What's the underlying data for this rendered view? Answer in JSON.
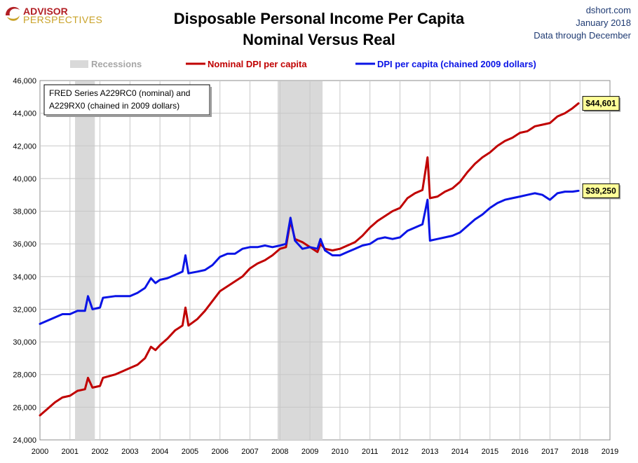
{
  "header": {
    "logo_line1": "ADVISOR",
    "logo_line2": "PERSPECTIVES",
    "title_line1": "Disposable Personal Income Per Capita",
    "title_line2": "Nominal Versus Real",
    "source": "dshort.com",
    "date": "January 2018",
    "coverage": "Data through December"
  },
  "note": {
    "line1": "FRED Series A229RC0 (nominal) and",
    "line2": "A229RX0 (chained in 2009 dollars)"
  },
  "colors": {
    "nominal": "#c00000",
    "real": "#0a14e6",
    "recession": "#d9d9d9",
    "grid": "#c8c8c8"
  },
  "chart_data": {
    "type": "line",
    "xlim": [
      2000,
      2019
    ],
    "ylim": [
      24000,
      46000
    ],
    "x_ticks": [
      "2000",
      "2001",
      "2002",
      "2003",
      "2004",
      "2005",
      "2006",
      "2007",
      "2008",
      "2009",
      "2010",
      "2011",
      "2012",
      "2013",
      "2014",
      "2015",
      "2016",
      "2017",
      "2018",
      "2019"
    ],
    "y_ticks": [
      "24,000",
      "26,000",
      "28,000",
      "30,000",
      "32,000",
      "34,000",
      "36,000",
      "38,000",
      "40,000",
      "42,000",
      "44,000",
      "46,000"
    ],
    "legend": {
      "recessions": "Recessions",
      "placement": "top"
    },
    "recessions": [
      [
        2001.17,
        2001.83
      ],
      [
        2007.92,
        2009.42
      ]
    ],
    "series": [
      {
        "name": "Nominal DPI per capita",
        "key": "nominal",
        "points": [
          [
            2000.0,
            25500
          ],
          [
            2000.25,
            25900
          ],
          [
            2000.5,
            26300
          ],
          [
            2000.75,
            26600
          ],
          [
            2001.0,
            26700
          ],
          [
            2001.25,
            27000
          ],
          [
            2001.5,
            27100
          ],
          [
            2001.6,
            27800
          ],
          [
            2001.75,
            27200
          ],
          [
            2002.0,
            27300
          ],
          [
            2002.1,
            27800
          ],
          [
            2002.5,
            28000
          ],
          [
            2002.75,
            28200
          ],
          [
            2003.0,
            28400
          ],
          [
            2003.25,
            28600
          ],
          [
            2003.5,
            29000
          ],
          [
            2003.7,
            29700
          ],
          [
            2003.85,
            29500
          ],
          [
            2004.0,
            29800
          ],
          [
            2004.25,
            30200
          ],
          [
            2004.5,
            30700
          ],
          [
            2004.75,
            31000
          ],
          [
            2004.85,
            32100
          ],
          [
            2004.95,
            31000
          ],
          [
            2005.25,
            31400
          ],
          [
            2005.5,
            31900
          ],
          [
            2005.75,
            32500
          ],
          [
            2006.0,
            33100
          ],
          [
            2006.25,
            33400
          ],
          [
            2006.5,
            33700
          ],
          [
            2006.75,
            34000
          ],
          [
            2007.0,
            34500
          ],
          [
            2007.25,
            34800
          ],
          [
            2007.5,
            35000
          ],
          [
            2007.75,
            35300
          ],
          [
            2008.0,
            35700
          ],
          [
            2008.2,
            35800
          ],
          [
            2008.35,
            37400
          ],
          [
            2008.5,
            36300
          ],
          [
            2008.75,
            36100
          ],
          [
            2009.0,
            35800
          ],
          [
            2009.25,
            35500
          ],
          [
            2009.35,
            36000
          ],
          [
            2009.5,
            35700
          ],
          [
            2009.75,
            35600
          ],
          [
            2010.0,
            35700
          ],
          [
            2010.25,
            35900
          ],
          [
            2010.5,
            36100
          ],
          [
            2010.75,
            36500
          ],
          [
            2011.0,
            37000
          ],
          [
            2011.25,
            37400
          ],
          [
            2011.5,
            37700
          ],
          [
            2011.75,
            38000
          ],
          [
            2012.0,
            38200
          ],
          [
            2012.25,
            38800
          ],
          [
            2012.5,
            39100
          ],
          [
            2012.75,
            39300
          ],
          [
            2012.92,
            41300
          ],
          [
            2013.0,
            38800
          ],
          [
            2013.25,
            38900
          ],
          [
            2013.5,
            39200
          ],
          [
            2013.75,
            39400
          ],
          [
            2014.0,
            39800
          ],
          [
            2014.25,
            40400
          ],
          [
            2014.5,
            40900
          ],
          [
            2014.75,
            41300
          ],
          [
            2015.0,
            41600
          ],
          [
            2015.25,
            42000
          ],
          [
            2015.5,
            42300
          ],
          [
            2015.75,
            42500
          ],
          [
            2016.0,
            42800
          ],
          [
            2016.25,
            42900
          ],
          [
            2016.5,
            43200
          ],
          [
            2016.75,
            43300
          ],
          [
            2017.0,
            43400
          ],
          [
            2017.25,
            43800
          ],
          [
            2017.5,
            44000
          ],
          [
            2017.75,
            44300
          ],
          [
            2017.95,
            44601
          ]
        ]
      },
      {
        "name": "DPI per capita (chained 2009 dollars)",
        "key": "real",
        "points": [
          [
            2000.0,
            31100
          ],
          [
            2000.25,
            31300
          ],
          [
            2000.5,
            31500
          ],
          [
            2000.75,
            31700
          ],
          [
            2001.0,
            31700
          ],
          [
            2001.25,
            31900
          ],
          [
            2001.5,
            31900
          ],
          [
            2001.6,
            32800
          ],
          [
            2001.75,
            32000
          ],
          [
            2002.0,
            32100
          ],
          [
            2002.1,
            32700
          ],
          [
            2002.5,
            32800
          ],
          [
            2002.75,
            32800
          ],
          [
            2003.0,
            32800
          ],
          [
            2003.25,
            33000
          ],
          [
            2003.5,
            33300
          ],
          [
            2003.7,
            33900
          ],
          [
            2003.85,
            33600
          ],
          [
            2004.0,
            33800
          ],
          [
            2004.25,
            33900
          ],
          [
            2004.5,
            34100
          ],
          [
            2004.75,
            34300
          ],
          [
            2004.85,
            35300
          ],
          [
            2004.95,
            34200
          ],
          [
            2005.25,
            34300
          ],
          [
            2005.5,
            34400
          ],
          [
            2005.75,
            34700
          ],
          [
            2006.0,
            35200
          ],
          [
            2006.25,
            35400
          ],
          [
            2006.5,
            35400
          ],
          [
            2006.75,
            35700
          ],
          [
            2007.0,
            35800
          ],
          [
            2007.25,
            35800
          ],
          [
            2007.5,
            35900
          ],
          [
            2007.75,
            35800
          ],
          [
            2008.0,
            35900
          ],
          [
            2008.2,
            36000
          ],
          [
            2008.35,
            37600
          ],
          [
            2008.5,
            36200
          ],
          [
            2008.75,
            35700
          ],
          [
            2009.0,
            35800
          ],
          [
            2009.25,
            35700
          ],
          [
            2009.35,
            36300
          ],
          [
            2009.5,
            35600
          ],
          [
            2009.75,
            35300
          ],
          [
            2010.0,
            35300
          ],
          [
            2010.25,
            35500
          ],
          [
            2010.5,
            35700
          ],
          [
            2010.75,
            35900
          ],
          [
            2011.0,
            36000
          ],
          [
            2011.25,
            36300
          ],
          [
            2011.5,
            36400
          ],
          [
            2011.75,
            36300
          ],
          [
            2012.0,
            36400
          ],
          [
            2012.25,
            36800
          ],
          [
            2012.5,
            37000
          ],
          [
            2012.75,
            37200
          ],
          [
            2012.92,
            38700
          ],
          [
            2013.0,
            36200
          ],
          [
            2013.25,
            36300
          ],
          [
            2013.5,
            36400
          ],
          [
            2013.75,
            36500
          ],
          [
            2014.0,
            36700
          ],
          [
            2014.25,
            37100
          ],
          [
            2014.5,
            37500
          ],
          [
            2014.75,
            37800
          ],
          [
            2015.0,
            38200
          ],
          [
            2015.25,
            38500
          ],
          [
            2015.5,
            38700
          ],
          [
            2015.75,
            38800
          ],
          [
            2016.0,
            38900
          ],
          [
            2016.25,
            39000
          ],
          [
            2016.5,
            39100
          ],
          [
            2016.75,
            39000
          ],
          [
            2017.0,
            38700
          ],
          [
            2017.25,
            39100
          ],
          [
            2017.5,
            39200
          ],
          [
            2017.75,
            39200
          ],
          [
            2017.95,
            39250
          ]
        ]
      }
    ],
    "callouts": [
      {
        "series": "nominal",
        "label": "$44,601",
        "value": 44601
      },
      {
        "series": "real",
        "label": "$39,250",
        "value": 39250
      }
    ]
  }
}
